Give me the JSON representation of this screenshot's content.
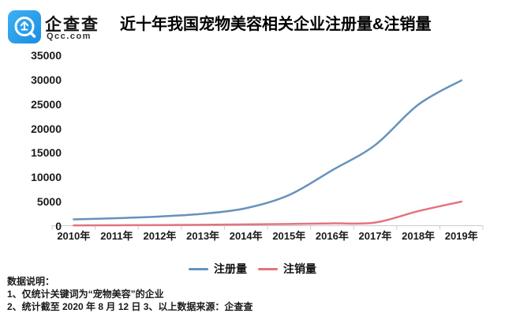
{
  "brand": {
    "name": "企查查",
    "domain": "Qcc.com",
    "logo_color": "#2aa0e9"
  },
  "title": "近十年我国宠物美容相关企业注册量&注销量",
  "chart_data": {
    "type": "line",
    "title": "近十年我国宠物美容相关企业注册量&注销量",
    "categories": [
      "2010年",
      "2011年",
      "2012年",
      "2013年",
      "2014年",
      "2015年",
      "2016年",
      "2017年",
      "2018年",
      "2019年"
    ],
    "series": [
      {
        "name": "注册量",
        "color": "#6592bc",
        "values": [
          1300,
          1550,
          1900,
          2450,
          3600,
          6300,
          11400,
          16600,
          24900,
          29900
        ]
      },
      {
        "name": "注销量",
        "color": "#e4737f",
        "values": [
          60,
          90,
          130,
          190,
          260,
          340,
          480,
          650,
          3000,
          4950
        ]
      }
    ],
    "ylim": [
      0,
      35000
    ],
    "ytick_labels": [
      "35000",
      "30000",
      "25000",
      "20000",
      "15000",
      "10000",
      "5000",
      "0"
    ],
    "grid": false,
    "smooth": true,
    "legend_position": "bottom",
    "axis_color": "#cccccc"
  },
  "footer": {
    "heading": "数据说明：",
    "note1": "1、仅统计关键词为“宠物美容”的企业",
    "note2": "2、统计截至 2020 年 8 月 12 日  3、以上数据来源：企查查"
  }
}
